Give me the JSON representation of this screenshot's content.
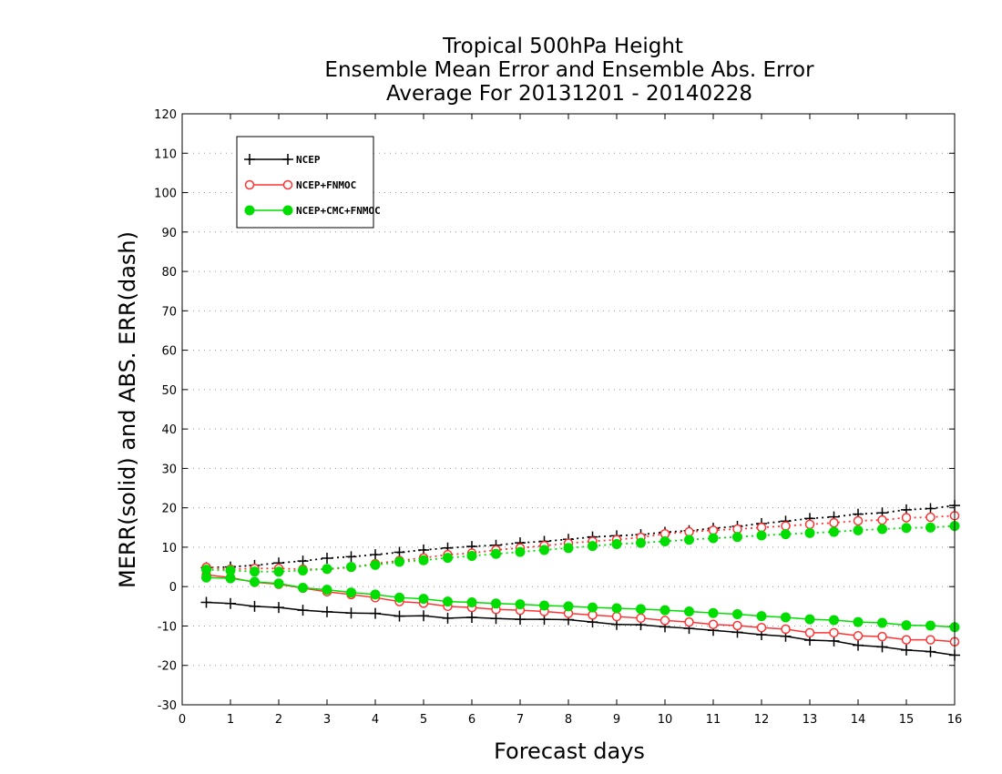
{
  "chart_data": {
    "type": "line",
    "title_lines": [
      "Tropical 500hPa Height",
      "Ensemble Mean Error and Ensemble Abs. Error",
      "Average For 20131201 - 20140228"
    ],
    "xlabel": "Forecast days",
    "ylabel": "MERR(solid) and ABS. ERR(dash)",
    "xlim": [
      0,
      16
    ],
    "ylim": [
      -30,
      120
    ],
    "x_ticks": [
      0,
      1,
      2,
      3,
      4,
      5,
      6,
      7,
      8,
      9,
      10,
      11,
      12,
      13,
      14,
      15,
      16
    ],
    "y_ticks": [
      -30,
      -20,
      -10,
      0,
      10,
      20,
      30,
      40,
      50,
      60,
      70,
      80,
      90,
      100,
      110,
      120
    ],
    "grid": "horizontal-dotted",
    "legend_position": "top-left",
    "x": [
      0.5,
      1,
      1.5,
      2,
      2.5,
      3,
      3.5,
      4,
      4.5,
      5,
      5.5,
      6,
      6.5,
      7,
      7.5,
      8,
      8.5,
      9,
      9.5,
      10,
      10.5,
      11,
      11.5,
      12,
      12.5,
      13,
      13.5,
      14,
      14.5,
      15,
      15.5,
      16
    ],
    "series": [
      {
        "name": "NCEP",
        "color": "#000000",
        "marker": "plus",
        "mean_error": [
          -4,
          -4.3,
          -5,
          -5.3,
          -6,
          -6.4,
          -6.7,
          -6.8,
          -7.5,
          -7.4,
          -8,
          -7.8,
          -8.1,
          -8.3,
          -8.3,
          -8.4,
          -9,
          -9.6,
          -9.7,
          -10.2,
          -10.6,
          -11.1,
          -11.6,
          -12.2,
          -12.6,
          -13.6,
          -13.8,
          -14.9,
          -15.3,
          -16.1,
          -16.5,
          -17.4
        ],
        "abs_error": [
          4.8,
          5,
          5.4,
          6,
          6.5,
          7.2,
          7.6,
          8.1,
          8.7,
          9.3,
          9.8,
          10.2,
          10.5,
          11.1,
          11.5,
          12,
          12.6,
          12.9,
          13.2,
          13.8,
          14.2,
          14.8,
          15.3,
          16,
          16.6,
          17.3,
          17.7,
          18.4,
          18.7,
          19.5,
          19.8,
          20.6
        ]
      },
      {
        "name": "NCEP+FNMOC",
        "color": "#ff3333",
        "marker": "open-circle",
        "mean_error": [
          3,
          2.3,
          1.1,
          0.6,
          -0.4,
          -1.3,
          -2,
          -2.8,
          -3.8,
          -4.2,
          -5,
          -5.3,
          -5.8,
          -6,
          -6.3,
          -6.8,
          -7.2,
          -7.6,
          -8,
          -8.6,
          -9,
          -9.6,
          -9.9,
          -10.4,
          -10.8,
          -11.7,
          -11.7,
          -12.5,
          -12.7,
          -13.5,
          -13.5,
          -14
        ],
        "abs_error": [
          4.9,
          4.4,
          4.6,
          4.6,
          4.4,
          4.4,
          4.9,
          5.8,
          6.6,
          7.3,
          8.1,
          8.5,
          9.3,
          9.8,
          10.4,
          11,
          11.5,
          11.9,
          12.5,
          13.4,
          13.9,
          14.3,
          14.6,
          15,
          15.4,
          15.8,
          16.2,
          16.7,
          16.9,
          17.5,
          17.6,
          18
        ]
      },
      {
        "name": "NCEP+CMC+FNMOC",
        "color": "#00dd00",
        "marker": "filled-circle",
        "mean_error": [
          2.3,
          2.1,
          1.2,
          0.8,
          -0.3,
          -0.8,
          -1.5,
          -2,
          -2.8,
          -3.1,
          -3.8,
          -4,
          -4.3,
          -4.5,
          -4.8,
          -5,
          -5.3,
          -5.5,
          -5.7,
          -6,
          -6.3,
          -6.7,
          -7,
          -7.5,
          -7.8,
          -8.3,
          -8.5,
          -9,
          -9.2,
          -9.8,
          -9.9,
          -10.3
        ],
        "abs_error": [
          4.3,
          4.1,
          3.8,
          3.8,
          4.1,
          4.5,
          5,
          5.5,
          6.3,
          6.7,
          7.3,
          7.8,
          8.3,
          8.8,
          9.3,
          9.8,
          10.3,
          10.8,
          11.1,
          11.5,
          11.9,
          12.3,
          12.6,
          13,
          13.3,
          13.6,
          13.9,
          14.3,
          14.6,
          14.9,
          15,
          15.4
        ]
      }
    ]
  }
}
